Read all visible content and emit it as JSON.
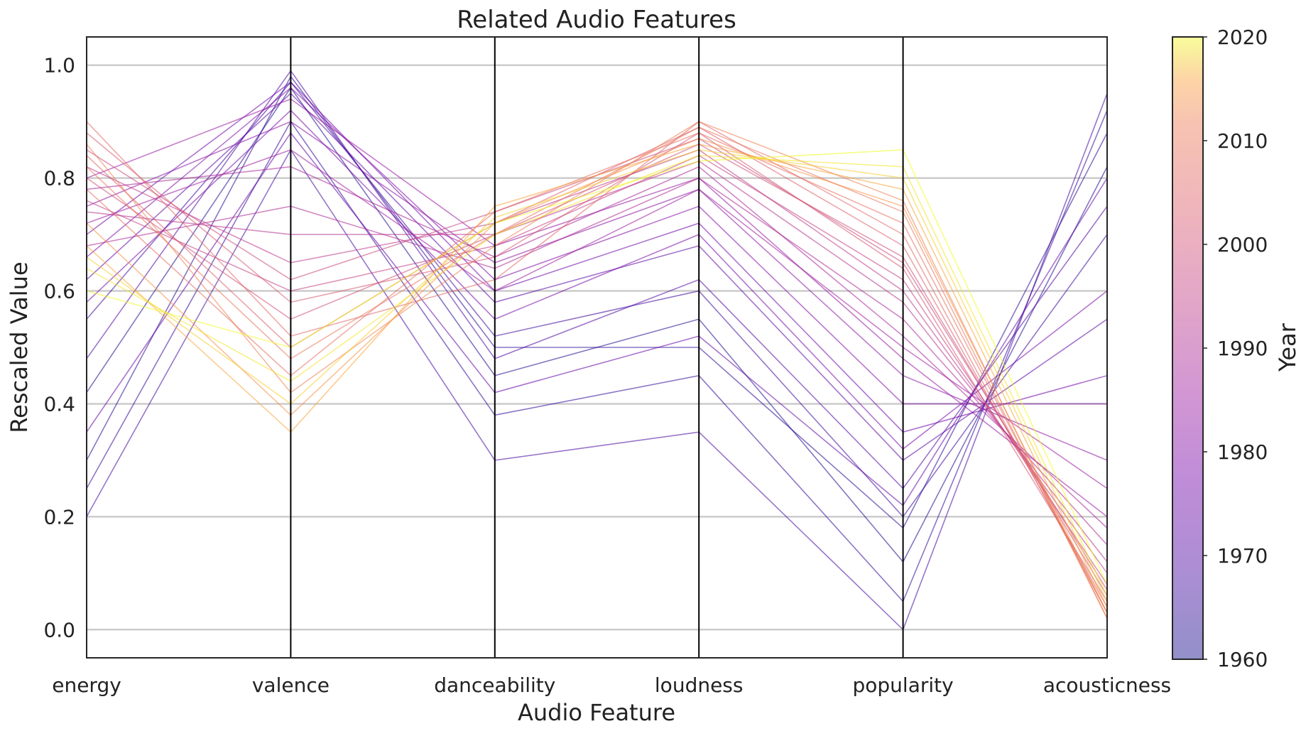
{
  "chart_data": {
    "type": "line",
    "subtype": "parallel-coordinates",
    "title": "Related Audio Features",
    "xlabel": "Audio Feature",
    "ylabel": "Rescaled Value",
    "ylim": [
      -0.05,
      1.05
    ],
    "yticks": [
      "0.0",
      "0.2",
      "0.4",
      "0.6",
      "0.8",
      "1.0"
    ],
    "grid": true,
    "axes": [
      "energy",
      "valence",
      "danceability",
      "loudness",
      "popularity",
      "acousticness"
    ],
    "colorbar": {
      "label": "Year",
      "range": [
        1960,
        2020
      ],
      "ticks": [
        "1960",
        "1970",
        "1980",
        "1990",
        "2000",
        "2010",
        "2020"
      ],
      "colormap": "plasma"
    },
    "series": [
      {
        "year": 1962,
        "values": [
          0.42,
          0.96,
          0.45,
          0.55,
          0.12,
          0.82
        ]
      },
      {
        "year": 1964,
        "values": [
          0.3,
          0.98,
          0.5,
          0.5,
          0.18,
          0.88
        ]
      },
      {
        "year": 1965,
        "values": [
          0.25,
          0.9,
          0.38,
          0.45,
          0.05,
          0.92
        ]
      },
      {
        "year": 1967,
        "values": [
          0.55,
          0.97,
          0.52,
          0.6,
          0.2,
          0.7
        ]
      },
      {
        "year": 1968,
        "values": [
          0.2,
          0.85,
          0.3,
          0.35,
          0.0,
          0.95
        ]
      },
      {
        "year": 1970,
        "values": [
          0.48,
          0.99,
          0.48,
          0.62,
          0.25,
          0.75
        ]
      },
      {
        "year": 1972,
        "values": [
          0.62,
          0.95,
          0.58,
          0.68,
          0.3,
          0.55
        ]
      },
      {
        "year": 1974,
        "values": [
          0.35,
          0.88,
          0.42,
          0.52,
          0.22,
          0.8
        ]
      },
      {
        "year": 1976,
        "values": [
          0.7,
          0.97,
          0.6,
          0.72,
          0.35,
          0.45
        ]
      },
      {
        "year": 1978,
        "values": [
          0.58,
          0.92,
          0.55,
          0.7,
          0.32,
          0.6
        ]
      },
      {
        "year": 1980,
        "values": [
          0.66,
          0.96,
          0.62,
          0.75,
          0.4,
          0.4
        ]
      },
      {
        "year": 1982,
        "values": [
          0.75,
          0.9,
          0.65,
          0.78,
          0.45,
          0.3
        ]
      },
      {
        "year": 1984,
        "values": [
          0.8,
          0.94,
          0.68,
          0.8,
          0.48,
          0.2
        ]
      },
      {
        "year": 1986,
        "values": [
          0.72,
          0.85,
          0.6,
          0.78,
          0.5,
          0.25
        ]
      },
      {
        "year": 1988,
        "values": [
          0.78,
          0.82,
          0.66,
          0.82,
          0.52,
          0.18
        ]
      },
      {
        "year": 1990,
        "values": [
          0.68,
          0.75,
          0.64,
          0.8,
          0.55,
          0.15
        ]
      },
      {
        "year": 1992,
        "values": [
          0.74,
          0.7,
          0.7,
          0.83,
          0.58,
          0.12
        ]
      },
      {
        "year": 1994,
        "values": [
          0.82,
          0.65,
          0.72,
          0.85,
          0.6,
          0.1
        ]
      },
      {
        "year": 1996,
        "values": [
          0.76,
          0.6,
          0.68,
          0.84,
          0.62,
          0.08
        ]
      },
      {
        "year": 1998,
        "values": [
          0.85,
          0.62,
          0.74,
          0.87,
          0.65,
          0.07
        ]
      },
      {
        "year": 2000,
        "values": [
          0.8,
          0.55,
          0.7,
          0.86,
          0.66,
          0.06
        ]
      },
      {
        "year": 2002,
        "values": [
          0.88,
          0.58,
          0.66,
          0.88,
          0.64,
          0.05
        ]
      },
      {
        "year": 2004,
        "values": [
          0.84,
          0.5,
          0.72,
          0.89,
          0.68,
          0.04
        ]
      },
      {
        "year": 2006,
        "values": [
          0.9,
          0.52,
          0.62,
          0.9,
          0.7,
          0.03
        ]
      },
      {
        "year": 2008,
        "values": [
          0.78,
          0.45,
          0.74,
          0.88,
          0.72,
          0.03
        ]
      },
      {
        "year": 2010,
        "values": [
          0.82,
          0.48,
          0.7,
          0.89,
          0.74,
          0.02
        ]
      },
      {
        "year": 2012,
        "values": [
          0.86,
          0.42,
          0.68,
          0.9,
          0.76,
          0.02
        ]
      },
      {
        "year": 2014,
        "values": [
          0.72,
          0.38,
          0.72,
          0.87,
          0.75,
          0.03
        ]
      },
      {
        "year": 2016,
        "values": [
          0.68,
          0.35,
          0.75,
          0.86,
          0.78,
          0.04
        ]
      },
      {
        "year": 2018,
        "values": [
          0.66,
          0.4,
          0.73,
          0.85,
          0.8,
          0.05
        ]
      },
      {
        "year": 2019,
        "values": [
          0.64,
          0.44,
          0.7,
          0.84,
          0.82,
          0.06
        ]
      },
      {
        "year": 2020,
        "values": [
          0.6,
          0.5,
          0.72,
          0.83,
          0.85,
          0.08
        ]
      }
    ]
  }
}
